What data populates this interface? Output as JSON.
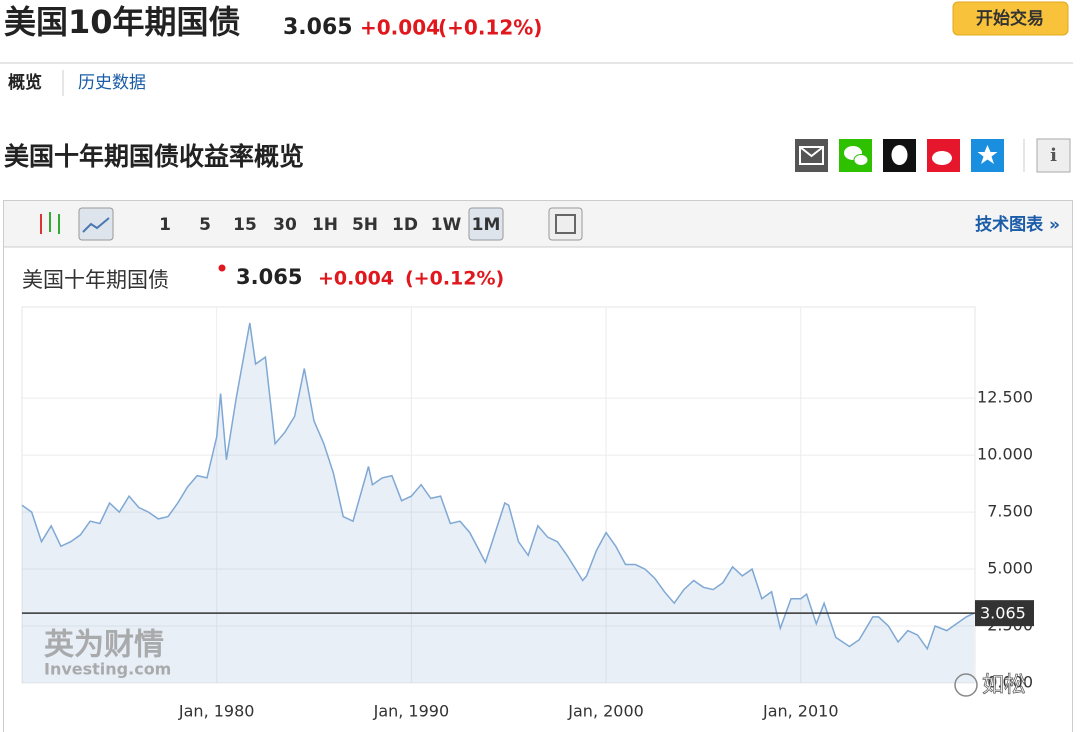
{
  "header": {
    "title": "美国10年期国债",
    "price": "3.065",
    "change": "+0.004",
    "change_pct": "(+0.12%)",
    "button": "开始交易"
  },
  "tabs": [
    "概览",
    "历史数据"
  ],
  "section_title": "美国十年期国债收益率概览",
  "toolbar": {
    "intervals": [
      "1",
      "5",
      "15",
      "30",
      "1H",
      "5H",
      "1D",
      "1W",
      "1M"
    ],
    "active": "1M",
    "link": "技术图表 »"
  },
  "chart_data": {
    "type": "line",
    "title": "美国十年期国债",
    "watermark": "英为财情",
    "watermark_sub": "Investing.com",
    "corner_mark": "如松",
    "series": [
      {
        "name": "美国十年期国债",
        "color": "#7fa8d4",
        "x": [
          1970.0,
          1970.5,
          1971.0,
          1971.5,
          1972.0,
          1972.5,
          1973.0,
          1973.5,
          1974.0,
          1974.5,
          1975.0,
          1975.5,
          1976.0,
          1976.5,
          1977.0,
          1977.5,
          1978.0,
          1978.5,
          1979.0,
          1979.5,
          1980.0,
          1980.2,
          1980.5,
          1981.0,
          1981.7,
          1982.0,
          1982.5,
          1983.0,
          1983.5,
          1984.0,
          1984.5,
          1985.0,
          1985.5,
          1986.0,
          1986.5,
          1987.0,
          1987.8,
          1988.0,
          1988.5,
          1989.0,
          1989.5,
          1990.0,
          1990.5,
          1991.0,
          1991.5,
          1992.0,
          1992.5,
          1993.0,
          1993.8,
          1994.0,
          1994.8,
          1995.0,
          1995.5,
          1996.0,
          1996.5,
          1997.0,
          1997.5,
          1998.0,
          1998.8,
          1999.0,
          1999.5,
          2000.0,
          2000.5,
          2001.0,
          2001.5,
          2002.0,
          2002.5,
          2003.0,
          2003.5,
          2004.0,
          2004.5,
          2005.0,
          2005.5,
          2006.0,
          2006.5,
          2007.0,
          2007.5,
          2008.0,
          2008.5,
          2008.95,
          2009.5,
          2010.0,
          2010.3,
          2010.8,
          2011.2,
          2011.8,
          2012.5,
          2013.0,
          2013.7,
          2014.0,
          2014.5,
          2015.0,
          2015.5,
          2016.0,
          2016.5,
          2016.9,
          2017.5,
          2018.0,
          2018.5,
          2018.9
        ],
        "values": [
          7.8,
          7.5,
          6.2,
          6.9,
          6.0,
          6.2,
          6.5,
          7.1,
          7.0,
          7.9,
          7.5,
          8.2,
          7.7,
          7.5,
          7.2,
          7.3,
          7.9,
          8.6,
          9.1,
          9.0,
          10.8,
          12.7,
          9.8,
          12.5,
          15.8,
          14.0,
          14.3,
          10.5,
          11.0,
          11.7,
          13.8,
          11.5,
          10.5,
          9.2,
          7.3,
          7.1,
          9.5,
          8.7,
          9.0,
          9.1,
          8.0,
          8.2,
          8.7,
          8.1,
          8.2,
          7.0,
          7.1,
          6.6,
          5.3,
          5.8,
          7.9,
          7.8,
          6.2,
          5.6,
          6.9,
          6.4,
          6.2,
          5.6,
          4.5,
          4.7,
          5.8,
          6.6,
          6.0,
          5.2,
          5.2,
          5.0,
          4.6,
          4.0,
          3.5,
          4.1,
          4.5,
          4.2,
          4.1,
          4.4,
          5.1,
          4.7,
          5.0,
          3.7,
          4.0,
          2.4,
          3.7,
          3.7,
          3.9,
          2.6,
          3.5,
          2.0,
          1.6,
          1.9,
          2.9,
          2.9,
          2.5,
          1.8,
          2.3,
          2.1,
          1.5,
          2.5,
          2.3,
          2.6,
          2.9,
          3.065
        ]
      }
    ],
    "last_value": 3.065,
    "xlim": [
      1970.0,
      2018.95
    ],
    "xticks": [
      {
        "value": 1980,
        "label": "Jan, 1980"
      },
      {
        "value": 1990,
        "label": "Jan, 1990"
      },
      {
        "value": 2000,
        "label": "Jan, 2000"
      },
      {
        "value": 2010,
        "label": "Jan, 2010"
      }
    ],
    "ylim": [
      0,
      16.5
    ],
    "yticks": [
      {
        "value": 0,
        "label": "0.000"
      },
      {
        "value": 2.5,
        "label": "2.500"
      },
      {
        "value": 5,
        "label": "5.000"
      },
      {
        "value": 7.5,
        "label": "7.500"
      },
      {
        "value": 10,
        "label": "10.000"
      },
      {
        "value": 12.5,
        "label": "12.500"
      }
    ],
    "grid": true
  }
}
